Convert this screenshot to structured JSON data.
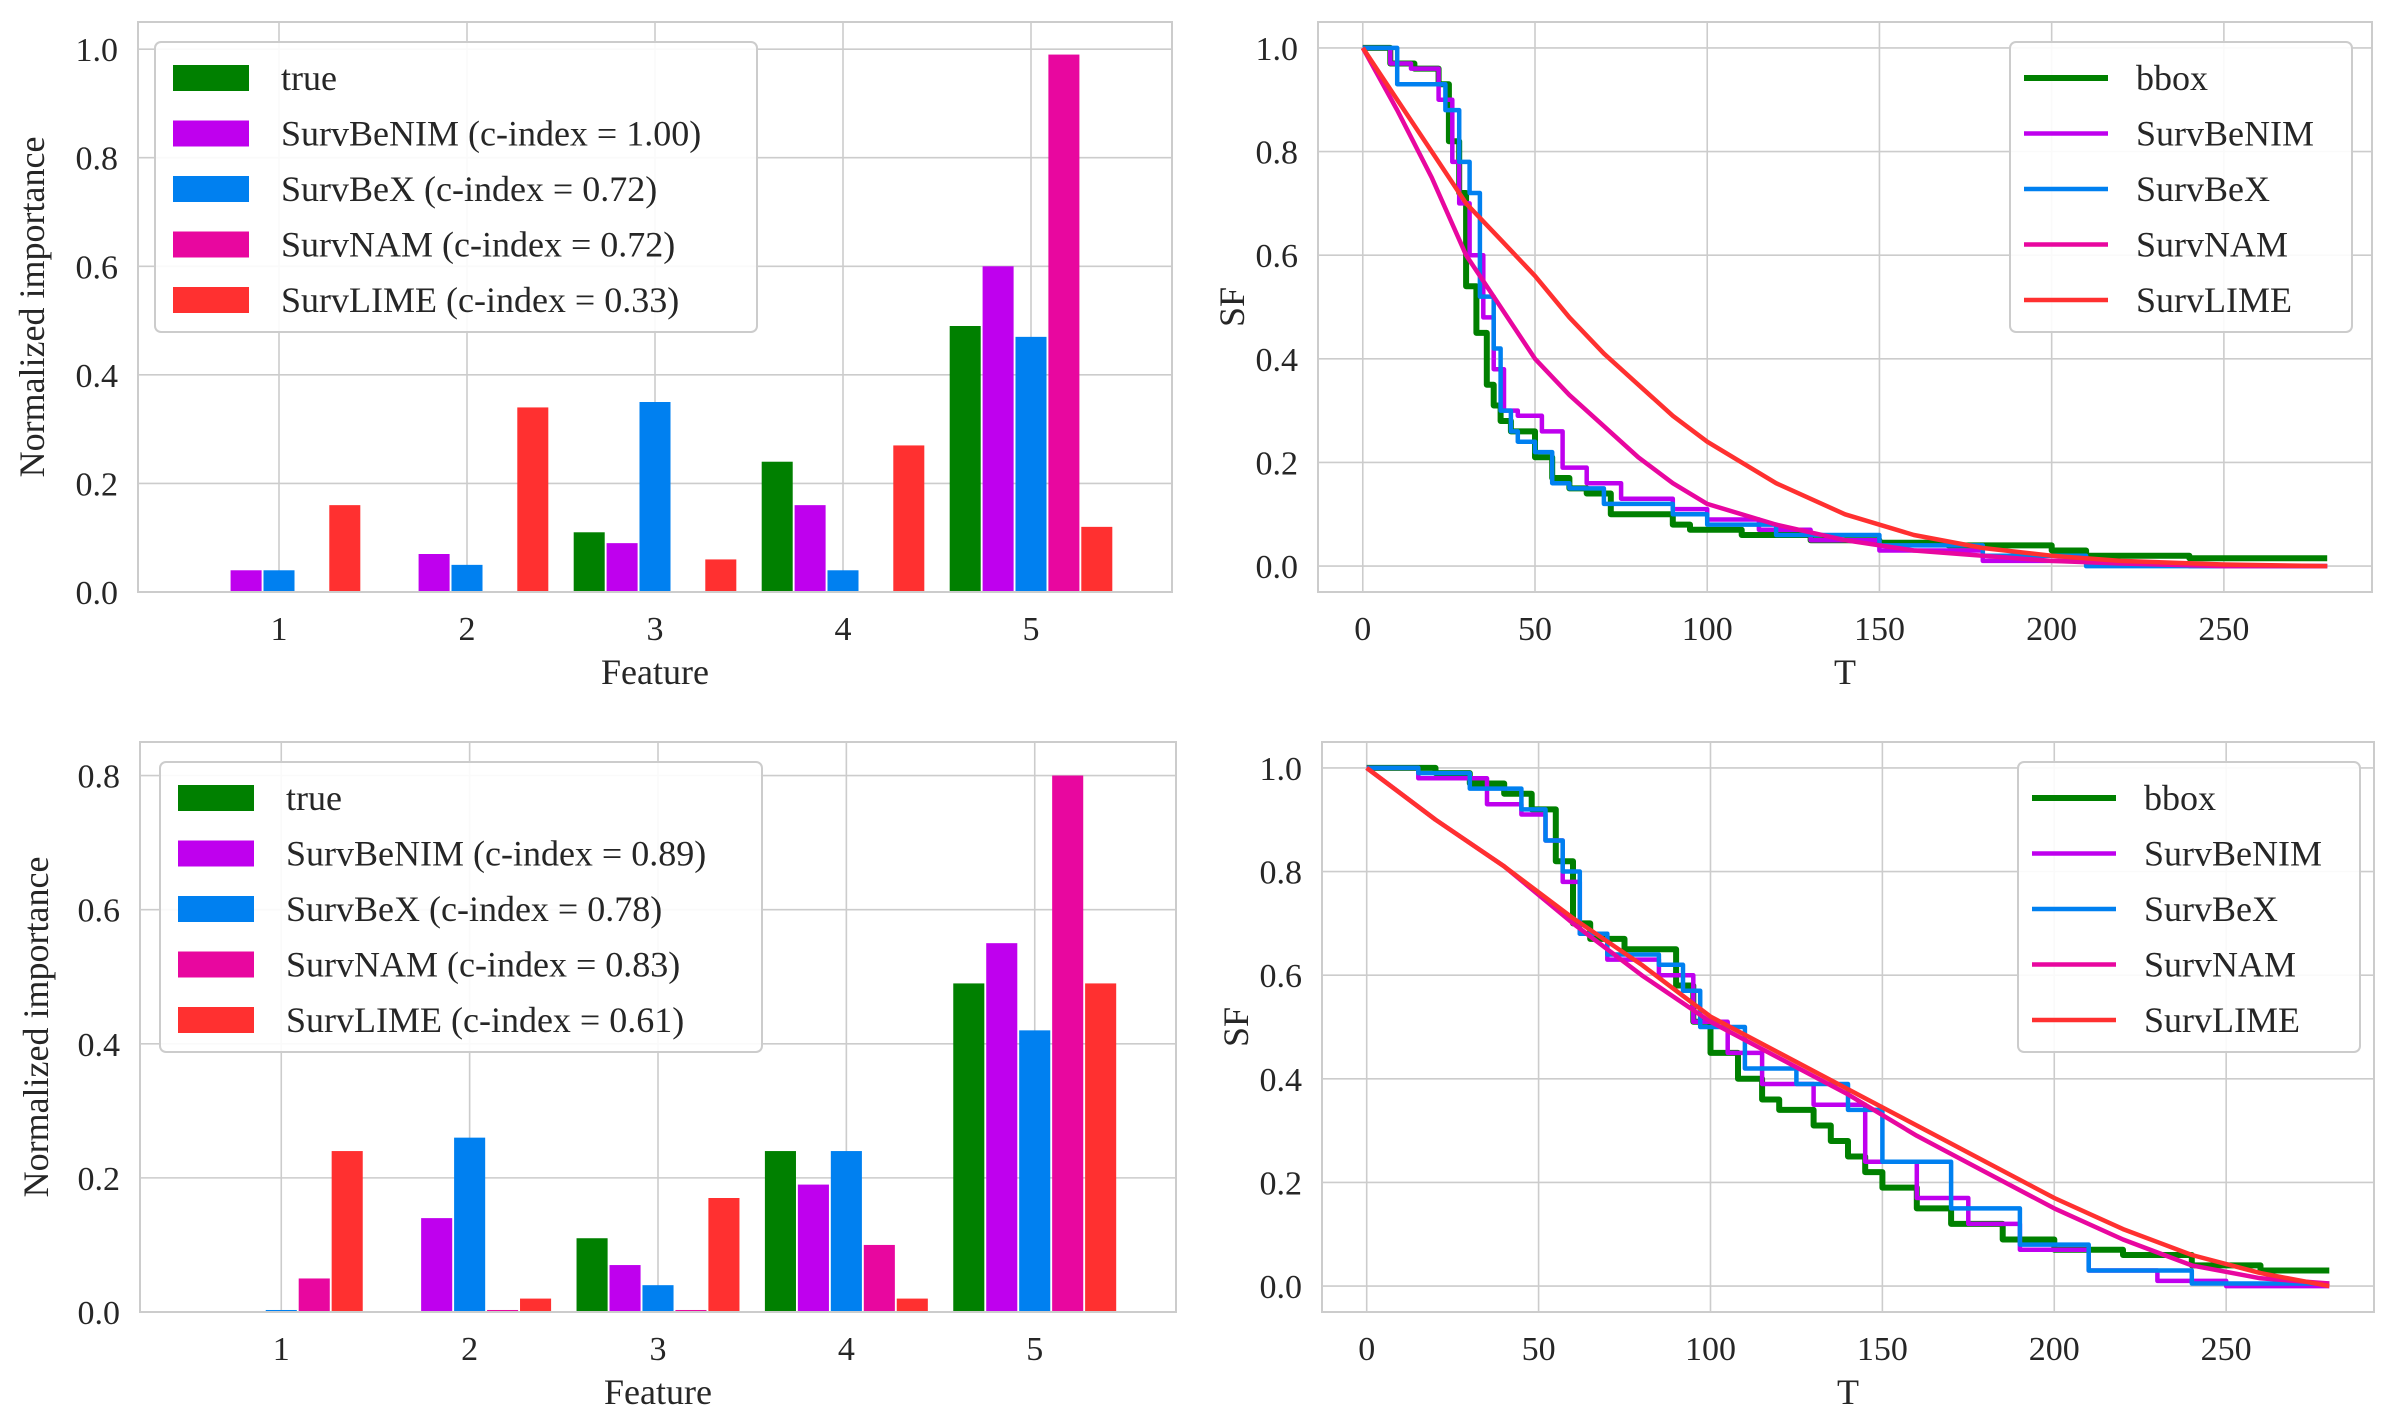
{
  "chart_data": [
    {
      "type": "bar",
      "categories": [
        "1",
        "2",
        "3",
        "4",
        "5"
      ],
      "series": [
        {
          "name": "true",
          "color": "#008000",
          "values": [
            0.0,
            0.0,
            0.11,
            0.24,
            0.49
          ]
        },
        {
          "name": "SurvBeNIM (c-index = 1.00)",
          "color": "#bf00ee",
          "values": [
            0.04,
            0.07,
            0.09,
            0.16,
            0.6
          ]
        },
        {
          "name": "SurvBeX (c-index = 0.72)",
          "color": "#0080f0",
          "values": [
            0.04,
            0.05,
            0.35,
            0.04,
            0.47
          ]
        },
        {
          "name": "SurvNAM (c-index = 0.72)",
          "color": "#e8079f",
          "values": [
            0.0,
            0.0,
            0.0,
            0.0,
            0.99
          ]
        },
        {
          "name": "SurvLIME (c-index = 0.33)",
          "color": "#ff3030",
          "values": [
            0.16,
            0.34,
            0.06,
            0.27,
            0.12
          ]
        }
      ],
      "xlabel": "Feature",
      "ylabel": "Normalized importance",
      "ylim": [
        0,
        1.05
      ],
      "yticks": [
        "0.0",
        "0.2",
        "0.4",
        "0.6",
        "0.8",
        "1.0"
      ],
      "grid": true,
      "legend": "top-left"
    },
    {
      "type": "line",
      "series": [
        {
          "name": "bbox",
          "color": "#008000",
          "x": [
            0,
            8,
            8,
            15,
            15,
            22,
            22,
            25,
            25,
            28,
            28,
            30,
            30,
            33,
            33,
            36,
            36,
            38,
            38,
            40,
            40,
            43,
            43,
            50,
            50,
            55,
            55,
            60,
            60,
            65,
            65,
            72,
            72,
            90,
            90,
            95,
            95,
            110,
            110,
            130,
            130,
            150,
            150,
            170,
            170,
            200,
            200,
            210,
            210,
            240,
            240,
            280
          ],
          "y": [
            1.0,
            1.0,
            0.97,
            0.97,
            0.96,
            0.96,
            0.93,
            0.93,
            0.82,
            0.82,
            0.72,
            0.72,
            0.54,
            0.54,
            0.45,
            0.45,
            0.35,
            0.35,
            0.31,
            0.31,
            0.28,
            0.28,
            0.26,
            0.26,
            0.21,
            0.21,
            0.17,
            0.17,
            0.15,
            0.15,
            0.14,
            0.14,
            0.1,
            0.1,
            0.08,
            0.08,
            0.07,
            0.07,
            0.06,
            0.06,
            0.05,
            0.05,
            0.045,
            0.045,
            0.04,
            0.04,
            0.03,
            0.03,
            0.02,
            0.02,
            0.015,
            0.015
          ]
        },
        {
          "name": "SurvBeNIM",
          "color": "#bf00ee",
          "x": [
            0,
            8,
            8,
            14,
            14,
            22,
            22,
            26,
            26,
            28,
            28,
            31,
            31,
            35,
            35,
            38,
            38,
            41,
            41,
            45,
            45,
            52,
            52,
            58,
            58,
            65,
            65,
            75,
            75,
            90,
            90,
            100,
            100,
            115,
            115,
            130,
            130,
            150,
            150,
            180,
            180,
            210,
            210,
            240,
            240,
            280
          ],
          "y": [
            1.0,
            1.0,
            0.97,
            0.97,
            0.96,
            0.96,
            0.9,
            0.9,
            0.78,
            0.78,
            0.7,
            0.7,
            0.6,
            0.6,
            0.48,
            0.48,
            0.38,
            0.38,
            0.3,
            0.3,
            0.29,
            0.29,
            0.26,
            0.26,
            0.19,
            0.19,
            0.16,
            0.16,
            0.13,
            0.13,
            0.11,
            0.11,
            0.09,
            0.09,
            0.07,
            0.07,
            0.05,
            0.05,
            0.03,
            0.03,
            0.01,
            0.01,
            0.005,
            0.005,
            0.0,
            0.0
          ]
        },
        {
          "name": "SurvBeX",
          "color": "#0080f0",
          "x": [
            0,
            10,
            10,
            24,
            24,
            28,
            28,
            31,
            31,
            34,
            34,
            38,
            38,
            40,
            40,
            43,
            43,
            45,
            45,
            50,
            50,
            55,
            55,
            60,
            60,
            70,
            70,
            90,
            90,
            100,
            100,
            120,
            120,
            150,
            150,
            180,
            180,
            210,
            210,
            280
          ],
          "y": [
            1.0,
            1.0,
            0.93,
            0.93,
            0.88,
            0.88,
            0.78,
            0.78,
            0.72,
            0.72,
            0.52,
            0.52,
            0.42,
            0.42,
            0.3,
            0.3,
            0.26,
            0.26,
            0.24,
            0.24,
            0.22,
            0.22,
            0.16,
            0.16,
            0.15,
            0.15,
            0.12,
            0.12,
            0.1,
            0.1,
            0.08,
            0.08,
            0.06,
            0.06,
            0.04,
            0.04,
            0.02,
            0.02,
            0.0,
            0.0
          ]
        },
        {
          "name": "SurvNAM",
          "color": "#e8079f",
          "x": [
            0,
            10,
            20,
            30,
            40,
            50,
            60,
            70,
            80,
            90,
            100,
            120,
            140,
            160,
            180,
            200,
            220,
            250,
            280
          ],
          "y": [
            1.0,
            0.88,
            0.75,
            0.6,
            0.5,
            0.4,
            0.33,
            0.27,
            0.21,
            0.16,
            0.12,
            0.08,
            0.05,
            0.03,
            0.02,
            0.01,
            0.005,
            0.0,
            0.0
          ]
        },
        {
          "name": "SurvLIME",
          "color": "#ff3030",
          "x": [
            0,
            10,
            20,
            30,
            40,
            50,
            60,
            70,
            80,
            90,
            100,
            120,
            140,
            160,
            180,
            200,
            220,
            250,
            280
          ],
          "y": [
            1.0,
            0.9,
            0.8,
            0.7,
            0.63,
            0.56,
            0.48,
            0.41,
            0.35,
            0.29,
            0.24,
            0.16,
            0.1,
            0.06,
            0.035,
            0.02,
            0.01,
            0.003,
            0.0
          ]
        }
      ],
      "xlabel": "T",
      "ylabel": "SF",
      "xlim": [
        -13,
        293
      ],
      "ylim": [
        -0.05,
        1.05
      ],
      "xticks": [
        "0",
        "50",
        "100",
        "150",
        "200",
        "250"
      ],
      "yticks": [
        "0.0",
        "0.2",
        "0.4",
        "0.6",
        "0.8",
        "1.0"
      ],
      "grid": true,
      "legend": "top-right"
    },
    {
      "type": "bar",
      "categories": [
        "1",
        "2",
        "3",
        "4",
        "5"
      ],
      "series": [
        {
          "name": "true",
          "color": "#008000",
          "values": [
            0.0,
            0.0,
            0.11,
            0.24,
            0.49
          ]
        },
        {
          "name": "SurvBeNIM (c-index = 0.89)",
          "color": "#bf00ee",
          "values": [
            0.0,
            0.14,
            0.07,
            0.19,
            0.55
          ]
        },
        {
          "name": "SurvBeX (c-index = 0.78)",
          "color": "#0080f0",
          "values": [
            0.003,
            0.26,
            0.04,
            0.24,
            0.42
          ]
        },
        {
          "name": "SurvNAM (c-index = 0.83)",
          "color": "#e8079f",
          "values": [
            0.05,
            0.003,
            0.003,
            0.1,
            0.8
          ]
        },
        {
          "name": "SurvLIME (c-index = 0.61)",
          "color": "#ff3030",
          "values": [
            0.24,
            0.02,
            0.17,
            0.02,
            0.49
          ]
        }
      ],
      "xlabel": "Feature",
      "ylabel": "Normalized importance",
      "ylim": [
        0,
        0.85
      ],
      "yticks": [
        "0.0",
        "0.2",
        "0.4",
        "0.6",
        "0.8"
      ],
      "grid": true,
      "legend": "top-left"
    },
    {
      "type": "line",
      "series": [
        {
          "name": "bbox",
          "color": "#008000",
          "x": [
            0,
            20,
            20,
            30,
            30,
            40,
            40,
            48,
            48,
            55,
            55,
            60,
            60,
            65,
            65,
            75,
            75,
            90,
            90,
            95,
            95,
            100,
            100,
            108,
            108,
            115,
            115,
            120,
            120,
            130,
            130,
            135,
            135,
            140,
            140,
            145,
            145,
            150,
            150,
            160,
            160,
            170,
            170,
            185,
            185,
            200,
            200,
            220,
            220,
            240,
            240,
            260,
            260,
            280
          ],
          "y": [
            1.0,
            1.0,
            0.99,
            0.99,
            0.97,
            0.97,
            0.95,
            0.95,
            0.92,
            0.92,
            0.82,
            0.82,
            0.7,
            0.7,
            0.67,
            0.67,
            0.65,
            0.65,
            0.58,
            0.58,
            0.51,
            0.51,
            0.45,
            0.45,
            0.4,
            0.4,
            0.36,
            0.36,
            0.34,
            0.34,
            0.31,
            0.31,
            0.28,
            0.28,
            0.25,
            0.25,
            0.22,
            0.22,
            0.19,
            0.19,
            0.15,
            0.15,
            0.12,
            0.12,
            0.09,
            0.09,
            0.07,
            0.07,
            0.06,
            0.06,
            0.04,
            0.04,
            0.03,
            0.03
          ]
        },
        {
          "name": "SurvBeNIM",
          "color": "#bf00ee",
          "x": [
            0,
            15,
            15,
            35,
            35,
            45,
            45,
            52,
            52,
            57,
            57,
            62,
            62,
            70,
            70,
            85,
            85,
            95,
            95,
            105,
            105,
            115,
            115,
            130,
            130,
            145,
            145,
            160,
            160,
            175,
            175,
            190,
            190,
            210,
            210,
            230,
            230,
            250,
            250,
            280
          ],
          "y": [
            1.0,
            1.0,
            0.98,
            0.98,
            0.93,
            0.93,
            0.91,
            0.91,
            0.86,
            0.86,
            0.78,
            0.78,
            0.68,
            0.68,
            0.63,
            0.63,
            0.6,
            0.6,
            0.51,
            0.51,
            0.45,
            0.45,
            0.39,
            0.39,
            0.35,
            0.35,
            0.24,
            0.24,
            0.17,
            0.17,
            0.12,
            0.12,
            0.07,
            0.07,
            0.03,
            0.03,
            0.01,
            0.01,
            0.0,
            0.0
          ]
        },
        {
          "name": "SurvBeX",
          "color": "#0080f0",
          "x": [
            0,
            15,
            15,
            30,
            30,
            45,
            45,
            52,
            52,
            57,
            57,
            62,
            62,
            70,
            70,
            85,
            85,
            92,
            92,
            97,
            97,
            110,
            110,
            125,
            125,
            140,
            140,
            150,
            150,
            170,
            170,
            190,
            190,
            210,
            210,
            240,
            240,
            280
          ],
          "y": [
            1.0,
            1.0,
            0.99,
            0.99,
            0.96,
            0.96,
            0.92,
            0.92,
            0.86,
            0.86,
            0.8,
            0.8,
            0.68,
            0.68,
            0.64,
            0.64,
            0.62,
            0.62,
            0.57,
            0.57,
            0.5,
            0.5,
            0.42,
            0.42,
            0.39,
            0.39,
            0.34,
            0.34,
            0.24,
            0.24,
            0.15,
            0.15,
            0.08,
            0.08,
            0.03,
            0.03,
            0.005,
            0.005
          ]
        },
        {
          "name": "SurvNAM",
          "color": "#e8079f",
          "x": [
            0,
            20,
            40,
            60,
            80,
            100,
            120,
            140,
            160,
            180,
            200,
            220,
            240,
            260,
            280
          ],
          "y": [
            1.0,
            0.9,
            0.81,
            0.7,
            0.6,
            0.51,
            0.44,
            0.37,
            0.29,
            0.22,
            0.15,
            0.09,
            0.04,
            0.015,
            0.005
          ]
        },
        {
          "name": "SurvLIME",
          "color": "#ff3030",
          "x": [
            0,
            20,
            40,
            60,
            80,
            100,
            120,
            140,
            160,
            180,
            200,
            220,
            240,
            260,
            280
          ],
          "y": [
            1.0,
            0.9,
            0.81,
            0.71,
            0.62,
            0.52,
            0.45,
            0.38,
            0.31,
            0.24,
            0.17,
            0.11,
            0.06,
            0.025,
            0.0
          ]
        }
      ],
      "xlabel": "T",
      "ylabel": "SF",
      "xlim": [
        -13,
        293
      ],
      "ylim": [
        -0.05,
        1.05
      ],
      "xticks": [
        "0",
        "50",
        "100",
        "150",
        "200",
        "250"
      ],
      "yticks": [
        "0.0",
        "0.2",
        "0.4",
        "0.6",
        "0.8",
        "1.0"
      ],
      "grid": true,
      "legend": "top-right"
    }
  ]
}
